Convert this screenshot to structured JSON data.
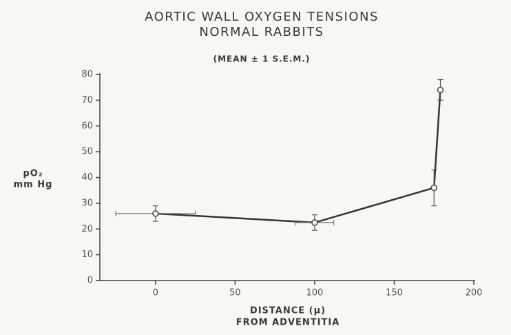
{
  "chart_data": {
    "type": "line",
    "title": "AORTIC WALL OXYGEN TENSIONS",
    "title2": "NORMAL RABBITS",
    "subtitle": "(MEAN ± 1 S.E.M.)",
    "ylabel": [
      "pO₂",
      "mm Hg"
    ],
    "xlabel": [
      "DISTANCE (µ)",
      "FROM ADVENTITIA"
    ],
    "x": [
      0,
      100,
      175,
      179
    ],
    "values": [
      26,
      22.5,
      36,
      74
    ],
    "errors": [
      3,
      3,
      7,
      4
    ],
    "xerrors": [
      25,
      12,
      0,
      0
    ],
    "color": "#333333",
    "xlim": [
      -35,
      200
    ],
    "xticks": [
      0,
      50,
      100,
      150,
      200
    ],
    "ylim": [
      0,
      80
    ],
    "yticks": [
      0,
      10,
      20,
      30,
      40,
      50,
      60,
      70,
      80
    ],
    "grid": false
  }
}
